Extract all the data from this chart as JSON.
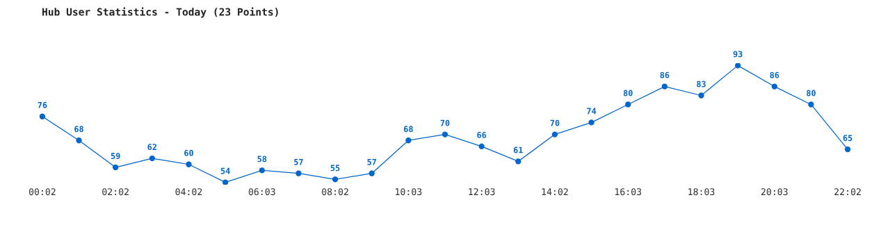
{
  "chart_data": {
    "type": "line",
    "title": "Hub User Statistics - Today (23 Points)",
    "categories": [
      "00:02",
      null,
      "02:02",
      null,
      "04:02",
      null,
      "06:03",
      null,
      "08:02",
      null,
      "10:03",
      null,
      "12:03",
      null,
      "14:02",
      null,
      "16:03",
      null,
      "18:03",
      null,
      "20:03",
      null,
      "22:02"
    ],
    "series": [
      {
        "color": "#0066cc",
        "values": [
          76,
          68,
          59,
          62,
          60,
          54,
          58,
          57,
          55,
          57,
          68,
          70,
          66,
          61,
          70,
          74,
          80,
          86,
          83,
          93,
          86,
          80,
          65
        ]
      }
    ],
    "tick_labels": "x",
    "data_labels": true,
    "marker": "circle",
    "line_style": "solid",
    "grid": false,
    "legend": false
  }
}
